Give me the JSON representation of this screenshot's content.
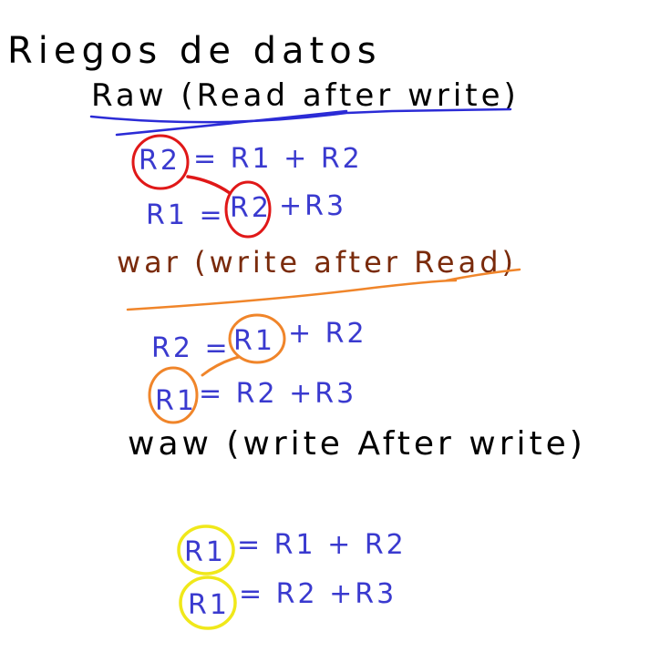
{
  "title": "Riegos de datos",
  "colors": {
    "ink_black": "#000000",
    "ink_blue": "#3a3acf",
    "ink_brown": "#7a2b0c",
    "mark_red": "#e01818",
    "mark_orange": "#f0852a",
    "mark_yellow": "#f0e81a",
    "underline_blue": "#2b2bd6"
  },
  "raw": {
    "heading": "Raw (Read after write)",
    "eq1": {
      "lhs": "R2",
      "rhs": "= R1 + R2"
    },
    "eq2": {
      "lhs": "R1 =",
      "op1": "R2",
      "rest": "+R3"
    }
  },
  "war": {
    "heading": "war (write after Read)",
    "eq1": {
      "lhs": "R2 =",
      "op1": "R1",
      "rest": "+ R2"
    },
    "eq2": {
      "lhs": "R1",
      "rest": "=  R2 +R3"
    }
  },
  "waw": {
    "heading": "waw (write After write)",
    "eq1": {
      "lhs": "R1",
      "rest": "= R1 + R2"
    },
    "eq2": {
      "lhs": "R1",
      "rest": "= R2 +R3"
    }
  }
}
